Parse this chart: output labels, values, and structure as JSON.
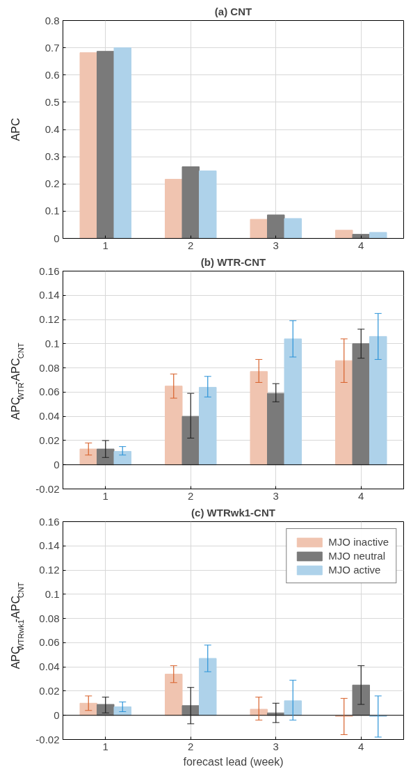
{
  "chart_data": [
    {
      "type": "bar",
      "title": "(a) CNT",
      "ylabel": "APC",
      "categories": [
        "1",
        "2",
        "3",
        "4"
      ],
      "series": [
        {
          "color": "#f0c4b0",
          "values": [
            0.682,
            0.217,
            0.07,
            0.03
          ]
        },
        {
          "color": "#7a7a7a",
          "values": [
            0.687,
            0.263,
            0.086,
            0.015
          ]
        },
        {
          "color": "#aed2ea",
          "values": [
            0.7,
            0.248,
            0.073,
            0.022
          ]
        }
      ],
      "ylim": [
        0,
        0.8
      ],
      "yticks": [
        0,
        0.1,
        0.2,
        0.3,
        0.4,
        0.5,
        0.6,
        0.7,
        0.8
      ],
      "grid": true
    },
    {
      "type": "bar",
      "title": "(b) WTR-CNT",
      "ylabel": "APC$_{WTR}$-APC$_{CNT}$",
      "categories": [
        "1",
        "2",
        "3",
        "4"
      ],
      "series": [
        {
          "color": "#f0c4b0",
          "values": [
            0.013,
            0.065,
            0.077,
            0.086
          ],
          "errors": [
            [
              0.008,
              0.018
            ],
            [
              0.055,
              0.075
            ],
            [
              0.068,
              0.087
            ],
            [
              0.068,
              0.104
            ]
          ]
        },
        {
          "color": "#7a7a7a",
          "values": [
            0.013,
            0.04,
            0.059,
            0.1
          ],
          "errors": [
            [
              0.006,
              0.02
            ],
            [
              0.022,
              0.059
            ],
            [
              0.052,
              0.067
            ],
            [
              0.088,
              0.112
            ]
          ]
        },
        {
          "color": "#aed2ea",
          "values": [
            0.011,
            0.064,
            0.104,
            0.106
          ],
          "errors": [
            [
              0.008,
              0.015
            ],
            [
              0.056,
              0.073
            ],
            [
              0.089,
              0.119
            ],
            [
              0.087,
              0.125
            ]
          ]
        }
      ],
      "ylim": [
        -0.02,
        0.16
      ],
      "yticks": [
        -0.02,
        0,
        0.02,
        0.04,
        0.06,
        0.08,
        0.1,
        0.12,
        0.14,
        0.16
      ],
      "grid": true,
      "ref_lines": [
        {
          "axis": "y",
          "value": 0,
          "color": "#000000"
        }
      ]
    },
    {
      "type": "bar",
      "title": "(c) WTRwk1-CNT",
      "ylabel": "APC$_{WTRwk1}$-APC$_{CNT}$",
      "xlabel": "forecast lead (week)",
      "categories": [
        "1",
        "2",
        "3",
        "4"
      ],
      "series": [
        {
          "name": "MJO inactive",
          "color": "#f0c4b0",
          "values": [
            0.01,
            0.034,
            0.005,
            -0.001
          ],
          "errors": [
            [
              0.004,
              0.016
            ],
            [
              0.027,
              0.041
            ],
            [
              -0.004,
              0.015
            ],
            [
              -0.016,
              0.014
            ]
          ]
        },
        {
          "name": "MJO neutral",
          "color": "#7a7a7a",
          "values": [
            0.009,
            0.008,
            0.002,
            0.025
          ],
          "errors": [
            [
              0.002,
              0.015
            ],
            [
              -0.007,
              0.023
            ],
            [
              -0.006,
              0.01
            ],
            [
              0.009,
              0.041
            ]
          ]
        },
        {
          "name": "MJO active",
          "color": "#aed2ea",
          "values": [
            0.007,
            0.047,
            0.012,
            -0.001
          ],
          "errors": [
            [
              0.003,
              0.011
            ],
            [
              0.036,
              0.058
            ],
            [
              -0.004,
              0.029
            ],
            [
              -0.018,
              0.016
            ]
          ]
        }
      ],
      "ylim": [
        -0.02,
        0.16
      ],
      "yticks": [
        -0.02,
        0,
        0.02,
        0.04,
        0.06,
        0.08,
        0.1,
        0.12,
        0.14,
        0.16
      ],
      "grid": true,
      "legend": "top right",
      "ref_lines": [
        {
          "axis": "y",
          "value": 0,
          "color": "#000000"
        }
      ]
    }
  ]
}
